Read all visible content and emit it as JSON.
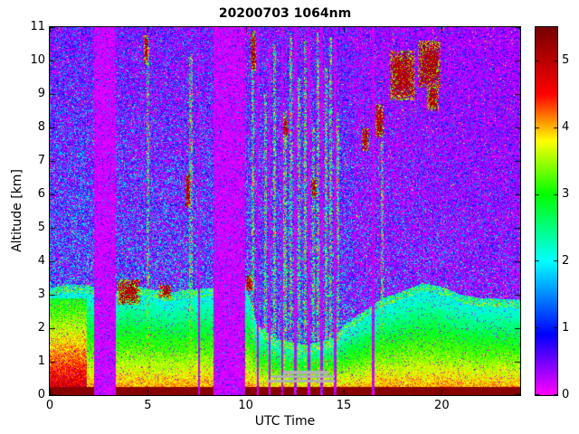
{
  "title": "20200703 1064nm",
  "axes": {
    "xlabel": "UTC Time",
    "ylabel": "Altitude [km]"
  },
  "chart_data": {
    "type": "heatmap",
    "title": "20200703 1064nm",
    "xlabel": "UTC Time",
    "ylabel": "Altitude [km]",
    "x_range": [
      0,
      24
    ],
    "y_range": [
      0,
      11
    ],
    "x_ticks": [
      0,
      5,
      10,
      15,
      20
    ],
    "y_ticks": [
      0,
      1,
      2,
      3,
      4,
      5,
      6,
      7,
      8,
      9,
      10,
      11
    ],
    "grid": false,
    "legend": "none",
    "colorbar": {
      "vmin": 0,
      "vmax": 5.5,
      "ticks": [
        0,
        1,
        2,
        3,
        4,
        5
      ],
      "position": "right",
      "stops": [
        [
          0,
          "#ff00ff"
        ],
        [
          0.9,
          "#0000ff"
        ],
        [
          2.0,
          "#00ffff"
        ],
        [
          3.0,
          "#00ff00"
        ],
        [
          3.8,
          "#ffff00"
        ],
        [
          4.5,
          "#ff0000"
        ],
        [
          5.5,
          "#780000"
        ]
      ]
    },
    "seed": 20200703,
    "data_gaps": [
      [
        2.25,
        3.35
      ],
      [
        7.55,
        7.66
      ],
      [
        8.35,
        9.95
      ],
      [
        10.55,
        10.68
      ],
      [
        11.15,
        11.28
      ],
      [
        11.8,
        11.92
      ],
      [
        12.45,
        12.58
      ],
      [
        13.15,
        13.28
      ],
      [
        13.8,
        13.95
      ],
      [
        14.5,
        14.62
      ],
      [
        16.45,
        16.55
      ]
    ],
    "surface_layer": {
      "top_km": 0.25,
      "value": 5.25
    },
    "boundary_layer": {
      "top_km": [
        [
          0,
          3.2
        ],
        [
          1,
          3.3
        ],
        [
          2.2,
          3.25
        ],
        [
          3.4,
          3.1
        ],
        [
          4,
          3.3
        ],
        [
          5,
          3.2
        ],
        [
          6,
          3.05
        ],
        [
          7,
          3.15
        ],
        [
          8.3,
          3.2
        ],
        [
          10,
          3.35
        ],
        [
          10.6,
          2.1
        ],
        [
          11.5,
          1.7
        ],
        [
          13,
          1.5
        ],
        [
          14.5,
          1.7
        ],
        [
          15,
          2.1
        ],
        [
          16,
          2.5
        ],
        [
          17,
          2.9
        ],
        [
          18,
          3.1
        ],
        [
          19,
          3.35
        ],
        [
          20,
          3.25
        ],
        [
          21,
          3.0
        ],
        [
          22,
          2.9
        ],
        [
          24,
          2.85
        ]
      ],
      "enhanced_left_until": 1.9
    },
    "clouds": [
      [
        3.45,
        4.6,
        2.7,
        3.45
      ],
      [
        4.82,
        5.02,
        9.9,
        10.75
      ],
      [
        5.6,
        6.2,
        2.9,
        3.3
      ],
      [
        6.9,
        7.15,
        5.6,
        6.6
      ],
      [
        10.25,
        10.5,
        9.7,
        10.9
      ],
      [
        10.0,
        10.35,
        3.1,
        3.6
      ],
      [
        11.9,
        12.15,
        7.7,
        8.3
      ],
      [
        13.35,
        13.6,
        5.9,
        6.5
      ],
      [
        15.9,
        16.3,
        7.3,
        8.0
      ],
      [
        16.6,
        17.05,
        7.7,
        8.7
      ],
      [
        17.35,
        18.65,
        8.8,
        10.3
      ],
      [
        18.8,
        19.95,
        9.2,
        10.6
      ],
      [
        19.25,
        19.85,
        8.5,
        9.3
      ]
    ],
    "streaks": [
      [
        5.0,
        10.6
      ],
      [
        7.2,
        10.2
      ],
      [
        10.35,
        10.9
      ],
      [
        11.0,
        9.0
      ],
      [
        11.45,
        10.5
      ],
      [
        12.0,
        8.5
      ],
      [
        12.3,
        10.8
      ],
      [
        12.7,
        9.5
      ],
      [
        13.05,
        10.6
      ],
      [
        13.45,
        8.0
      ],
      [
        13.7,
        10.9
      ],
      [
        14.1,
        9.8
      ],
      [
        14.35,
        10.7
      ],
      [
        14.7,
        8.5
      ],
      [
        16.95,
        7.6
      ]
    ],
    "gray_segments": [
      [
        11.1,
        14.55,
        0.42
      ],
      [
        11.3,
        14.55,
        0.55
      ],
      [
        11.9,
        14.2,
        0.68
      ]
    ]
  }
}
